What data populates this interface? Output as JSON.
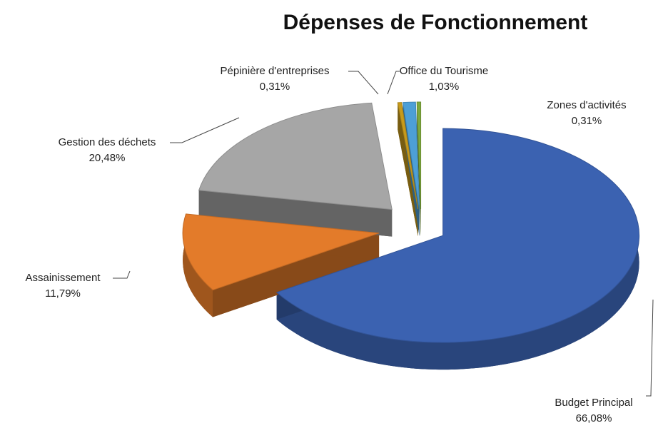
{
  "chart_data": {
    "type": "pie",
    "title": "Dépenses de Fonctionnement",
    "categories": [
      "Budget Principal",
      "Assainissement",
      "Gestion des déchets",
      "Pépinière d'entreprises",
      "Office du Tourisme",
      "Zones d'activités"
    ],
    "values": [
      66.08,
      11.79,
      20.48,
      0.31,
      1.03,
      0.31
    ],
    "value_labels": [
      "66,08%",
      "11,79%",
      "20,48%",
      "0,31%",
      "1,03%",
      "0,31%"
    ],
    "colors": [
      "#3b62b1",
      "#e37b2a",
      "#a6a6a6",
      "#c89b1c",
      "#4d9fd6",
      "#7ea83c"
    ]
  }
}
